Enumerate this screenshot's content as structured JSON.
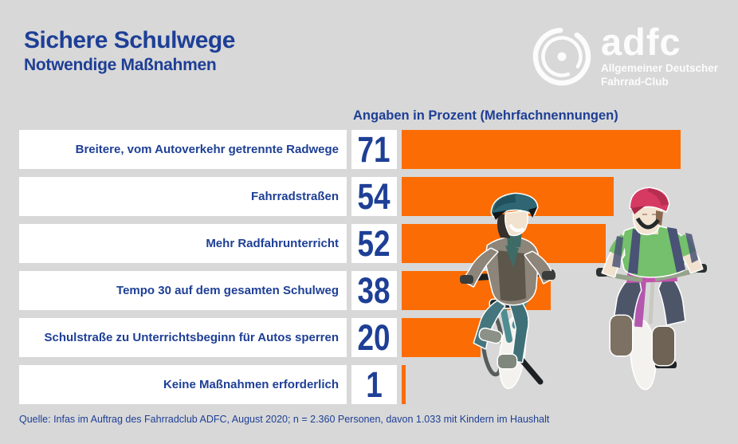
{
  "header": {
    "title": "Sichere Schulwege",
    "subtitle": "Notwendige Maßnahmen"
  },
  "logo": {
    "wordmark": "adfc",
    "tagline_line1": "Allgemeiner Deutscher",
    "tagline_line2": "Fahrrad-Club",
    "wheel_icon": "adfc-wheel-icon"
  },
  "chart_data": {
    "type": "bar",
    "orientation": "horizontal",
    "title": "Sichere Schulwege – Notwendige Maßnahmen",
    "axis_note": "Angaben in Prozent (Mehrfachnennungen)",
    "categories": [
      "Breitere, vom Autoverkehr getrennte Radwege",
      "Fahrradstraßen",
      "Mehr Radfahrunterricht",
      "Tempo 30 auf dem gesamten Schulweg",
      "Schulstraße zu Unterrichtsbeginn für Autos sperren",
      "Keine Maßnahmen erforderlich"
    ],
    "values": [
      71,
      54,
      52,
      38,
      20,
      1
    ],
    "unit": "%",
    "xlim": [
      0,
      100
    ],
    "grid": false,
    "legend": false,
    "bar_color": "#fb6c04",
    "value_label_position": "left-box"
  },
  "illustration": {
    "alt": "Zwei Kinder mit Fahrradhelmen fahren auf Fahrrädern"
  },
  "footer": {
    "source": "Quelle: Infas im Auftrag des Fahrradclub ADFC, August 2020; n = 2.360 Personen, davon 1.033 mit Kindern im Haushalt"
  },
  "colors": {
    "background": "#d8d8d8",
    "brand_blue": "#1e3f96",
    "bar_orange": "#fb6c04",
    "box_white": "#ffffff",
    "logo_white": "#ffffff"
  }
}
